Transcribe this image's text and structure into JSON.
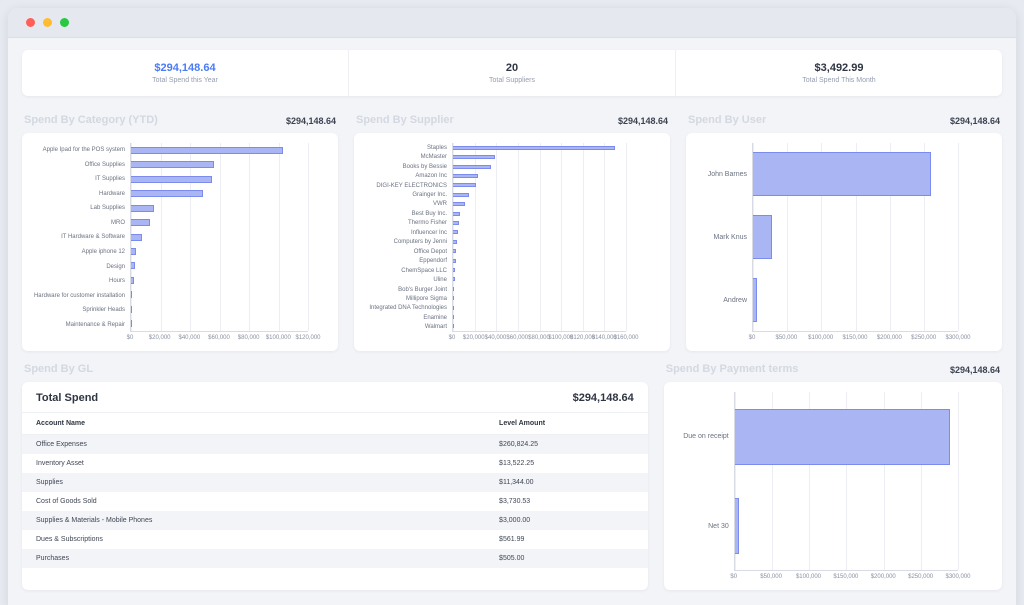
{
  "kpis": [
    {
      "value": "$294,148.64",
      "label": "Total Spend this Year"
    },
    {
      "value": "20",
      "label": "Total Suppliers"
    },
    {
      "value": "$3,492.99",
      "label": "Total Spend This Month"
    }
  ],
  "sections": {
    "category": {
      "title": "Spend By Category (YTD)",
      "amount": "$294,148.64"
    },
    "supplier": {
      "title": "Spend By Supplier",
      "amount": "$294,148.64"
    },
    "user": {
      "title": "Spend By User",
      "amount": "$294,148.64"
    },
    "gl": {
      "title": "Spend By GL"
    },
    "payment": {
      "title": "Spend By Payment terms",
      "amount": "$294,148.64"
    }
  },
  "gl_table": {
    "total_label": "Total Spend",
    "total_value": "$294,148.64",
    "columns": [
      "Account Name",
      "Level Amount"
    ],
    "rows": [
      [
        "Office Expenses",
        "$260,824.25"
      ],
      [
        "Inventory Asset",
        "$13,522.25"
      ],
      [
        "Supplies",
        "$11,344.00"
      ],
      [
        "Cost of Goods Sold",
        "$3,730.53"
      ],
      [
        "Supplies & Materials - Mobile Phones",
        "$3,000.00"
      ],
      [
        "Dues & Subscriptions",
        "$561.99"
      ],
      [
        "Purchases",
        "$505.00"
      ]
    ]
  },
  "colors": {
    "bar_fill": "#aab5f3",
    "bar_border": "#7c8bee",
    "accent": "#4b7bf5"
  },
  "chart_data": [
    {
      "type": "bar",
      "orientation": "horizontal",
      "title": "Spend By Category (YTD)",
      "categories": [
        "Apple Ipad for the POS system",
        "Office Supplies",
        "IT Supplies",
        "Hardware",
        "Lab Supplies",
        "MRO",
        "IT Hardware & Software",
        "Apple iphone 12",
        "Design",
        "Hours",
        "Hardware for customer installation",
        "Sprinkler Heads",
        "Maintenance & Repair"
      ],
      "values": [
        103000,
        56000,
        55000,
        49000,
        15500,
        13000,
        7500,
        3700,
        2500,
        1800,
        700,
        600,
        500
      ],
      "xlim": [
        0,
        120000
      ],
      "ticks": [
        "$0",
        "$20,000",
        "$40,000",
        "$60,000",
        "$80,000",
        "$100,000",
        "$120,000"
      ],
      "grid": "vertical",
      "xlabel": "",
      "ylabel": ""
    },
    {
      "type": "bar",
      "orientation": "horizontal",
      "title": "Spend By Supplier",
      "categories": [
        "Staples",
        "McMaster",
        "Books by Bessie",
        "Amazon Inc",
        "DIGI-KEY ELECTRONICS",
        "Grainger Inc.",
        "VWR",
        "Best Buy Inc.",
        "Thermo Fisher",
        "Influencer Inc",
        "Computers by Jenni",
        "Office Depot",
        "Eppendorf",
        "ChemSpace LLC",
        "Uline",
        "Bob's Burger Joint",
        "Millipore Sigma",
        "Integrated DNA Technologies",
        "Enamine",
        "Walmart"
      ],
      "values": [
        150000,
        39000,
        35000,
        23500,
        21000,
        15000,
        11500,
        6500,
        5500,
        5000,
        4000,
        3200,
        2600,
        2200,
        1600,
        1300,
        900,
        700,
        500,
        400
      ],
      "xlim": [
        0,
        160000
      ],
      "ticks": [
        "$0",
        "$20,000",
        "$40,000",
        "$60,000",
        "$80,000",
        "$100,000",
        "$120,000",
        "$140,000",
        "$160,000"
      ],
      "grid": "vertical",
      "xlabel": "",
      "ylabel": ""
    },
    {
      "type": "bar",
      "orientation": "horizontal",
      "title": "Spend By User",
      "categories": [
        "John Barnes",
        "Mark Knus",
        "Andrew"
      ],
      "values": [
        260000,
        28500,
        5600
      ],
      "xlim": [
        0,
        300000
      ],
      "ticks": [
        "$0",
        "$50,000",
        "$100,000",
        "$150,000",
        "$200,000",
        "$250,000",
        "$300,000"
      ],
      "grid": "vertical",
      "xlabel": "",
      "ylabel": ""
    },
    {
      "type": "bar",
      "orientation": "horizontal",
      "title": "Spend By Payment terms",
      "categories": [
        "Due on receipt",
        "Net 30"
      ],
      "values": [
        288600,
        5500
      ],
      "xlim": [
        0,
        300000
      ],
      "ticks": [
        "$0",
        "$50,000",
        "$100,000",
        "$150,000",
        "$200,000",
        "$250,000",
        "$300,000"
      ],
      "grid": "vertical",
      "xlabel": "",
      "ylabel": ""
    }
  ]
}
